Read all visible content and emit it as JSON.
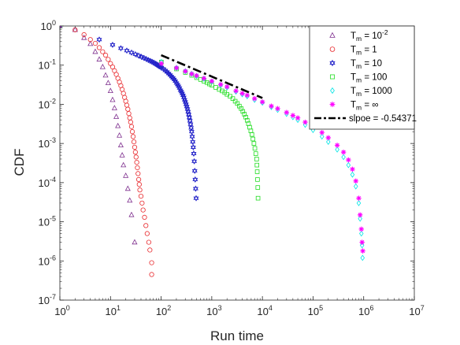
{
  "chart_data": {
    "type": "scatter",
    "title": "",
    "xlabel": "Run time",
    "ylabel": "CDF",
    "xscale": "log",
    "yscale": "log",
    "xlim": [
      1,
      10000000
    ],
    "ylim": [
      1e-07,
      1
    ],
    "x_ticks": [
      "10^0",
      "10^1",
      "10^2",
      "10^3",
      "10^4",
      "10^5",
      "10^6",
      "10^7"
    ],
    "y_ticks": [
      "10^0",
      "10^-1",
      "10^-2",
      "10^-3",
      "10^-4",
      "10^-5",
      "10^-6",
      "10^-7"
    ],
    "legend_position": "top-right",
    "series": [
      {
        "name": "T_m = 10^-2",
        "label_main": "T",
        "label_sub": "m",
        "label_rest": " = 10",
        "label_sup": "-2",
        "marker": "triangle",
        "color": "#7E2F8E",
        "points": [
          [
            1,
            1
          ],
          [
            2,
            0.8
          ],
          [
            3,
            0.5
          ],
          [
            4,
            0.35
          ],
          [
            5,
            0.22
          ],
          [
            6,
            0.14
          ],
          [
            7,
            0.09
          ],
          [
            8,
            0.055
          ],
          [
            9,
            0.035
          ],
          [
            10,
            0.022
          ],
          [
            11,
            0.013
          ],
          [
            12,
            0.008
          ],
          [
            13,
            0.0048
          ],
          [
            14,
            0.0028
          ],
          [
            15,
            0.0016
          ],
          [
            16,
            0.0009
          ],
          [
            17,
            0.0005
          ],
          [
            18,
            0.00028
          ],
          [
            20,
            0.00015
          ],
          [
            22,
            7e-05
          ],
          [
            24,
            3.5e-05
          ],
          [
            26,
            1.5e-05
          ],
          [
            30,
            3e-06
          ]
        ]
      },
      {
        "name": "T_m = 1",
        "label_main": "T",
        "label_sub": "m",
        "label_rest": " = 1",
        "label_sup": "",
        "marker": "circle",
        "color": "#E8282C",
        "points": [
          [
            1,
            1
          ],
          [
            2,
            0.8
          ],
          [
            3,
            0.6
          ],
          [
            4,
            0.45
          ],
          [
            5,
            0.36
          ],
          [
            6,
            0.28
          ],
          [
            7,
            0.22
          ],
          [
            8,
            0.18
          ],
          [
            9,
            0.14
          ],
          [
            10,
            0.11
          ],
          [
            11,
            0.09
          ],
          [
            12,
            0.072
          ],
          [
            13,
            0.058
          ],
          [
            14,
            0.046
          ],
          [
            15,
            0.037
          ],
          [
            16,
            0.03
          ],
          [
            17,
            0.024
          ],
          [
            18,
            0.019
          ],
          [
            19,
            0.015
          ],
          [
            20,
            0.012
          ],
          [
            21,
            0.0095
          ],
          [
            22,
            0.0075
          ],
          [
            23,
            0.0058
          ],
          [
            24,
            0.0045
          ],
          [
            25,
            0.0035
          ],
          [
            26,
            0.0027
          ],
          [
            27,
            0.002
          ],
          [
            28,
            0.0015
          ],
          [
            29,
            0.0011
          ],
          [
            30,
            0.0008
          ],
          [
            31,
            0.0006
          ],
          [
            32,
            0.00045
          ],
          [
            33,
            0.00033
          ],
          [
            34,
            0.00024
          ],
          [
            35,
            0.00017
          ],
          [
            36,
            0.00012
          ],
          [
            37,
            9e-05
          ],
          [
            38,
            6.5e-05
          ],
          [
            40,
            4.5e-05
          ],
          [
            42,
            3e-05
          ],
          [
            44,
            2e-05
          ],
          [
            47,
            1.3e-05
          ],
          [
            50,
            8e-06
          ],
          [
            53,
            5e-06
          ],
          [
            57,
            3e-06
          ],
          [
            60,
            1.9e-06
          ],
          [
            65,
            9e-07
          ],
          [
            65,
            4.5e-07
          ]
        ]
      },
      {
        "name": "T_m = 10",
        "label_main": "T",
        "label_sub": "m",
        "label_rest": " = 10",
        "label_sup": "",
        "marker": "hexagram",
        "color": "#2020C8",
        "points": [
          [
            1,
            1
          ],
          [
            6,
            0.45
          ],
          [
            11,
            0.33
          ],
          [
            16,
            0.27
          ],
          [
            21,
            0.235
          ],
          [
            26,
            0.21
          ],
          [
            31,
            0.19
          ],
          [
            36,
            0.175
          ],
          [
            41,
            0.162
          ],
          [
            46,
            0.152
          ],
          [
            51,
            0.143
          ],
          [
            56,
            0.135
          ],
          [
            61,
            0.128
          ],
          [
            66,
            0.122
          ],
          [
            71,
            0.116
          ],
          [
            76,
            0.11
          ],
          [
            81,
            0.105
          ],
          [
            86,
            0.1
          ],
          [
            91,
            0.095
          ],
          [
            96,
            0.091
          ],
          [
            101,
            0.087
          ],
          [
            111,
            0.08
          ],
          [
            121,
            0.073
          ],
          [
            131,
            0.067
          ],
          [
            141,
            0.061
          ],
          [
            151,
            0.056
          ],
          [
            161,
            0.051
          ],
          [
            171,
            0.047
          ],
          [
            181,
            0.043
          ],
          [
            191,
            0.039
          ],
          [
            201,
            0.035
          ],
          [
            211,
            0.032
          ],
          [
            221,
            0.029
          ],
          [
            231,
            0.026
          ],
          [
            241,
            0.023
          ],
          [
            251,
            0.021
          ],
          [
            261,
            0.019
          ],
          [
            271,
            0.017
          ],
          [
            281,
            0.015
          ],
          [
            291,
            0.013
          ],
          [
            301,
            0.0115
          ],
          [
            311,
            0.01
          ],
          [
            321,
            0.0088
          ],
          [
            331,
            0.0076
          ],
          [
            341,
            0.0065
          ],
          [
            351,
            0.0055
          ],
          [
            361,
            0.0046
          ],
          [
            371,
            0.0038
          ],
          [
            381,
            0.0031
          ],
          [
            391,
            0.0025
          ],
          [
            401,
            0.002
          ],
          [
            411,
            0.0015
          ],
          [
            421,
            0.0011
          ],
          [
            431,
            0.0008
          ],
          [
            441,
            0.00055
          ],
          [
            451,
            0.00035
          ],
          [
            461,
            0.0002
          ],
          [
            471,
            0.00012
          ],
          [
            481,
            7e-05
          ],
          [
            491,
            4e-05
          ]
        ]
      },
      {
        "name": "T_m = 100",
        "label_main": "T",
        "label_sub": "m",
        "label_rest": " = 100",
        "label_sup": "",
        "marker": "square",
        "color": "#22DD22",
        "points": [
          [
            1,
            1
          ],
          [
            101,
            0.12
          ],
          [
            201,
            0.08
          ],
          [
            301,
            0.065
          ],
          [
            401,
            0.055
          ],
          [
            501,
            0.048
          ],
          [
            601,
            0.043
          ],
          [
            701,
            0.039
          ],
          [
            801,
            0.036
          ],
          [
            901,
            0.033
          ],
          [
            1001,
            0.031
          ],
          [
            1201,
            0.027
          ],
          [
            1401,
            0.024
          ],
          [
            1601,
            0.022
          ],
          [
            1801,
            0.02
          ],
          [
            2001,
            0.018
          ],
          [
            2301,
            0.016
          ],
          [
            2601,
            0.014
          ],
          [
            2901,
            0.012
          ],
          [
            3201,
            0.0105
          ],
          [
            3501,
            0.009
          ],
          [
            3801,
            0.0078
          ],
          [
            4101,
            0.0066
          ],
          [
            4401,
            0.0056
          ],
          [
            4701,
            0.0047
          ],
          [
            5001,
            0.0039
          ],
          [
            5301,
            0.0032
          ],
          [
            5601,
            0.0026
          ],
          [
            5901,
            0.0021
          ],
          [
            6201,
            0.0017
          ],
          [
            6501,
            0.0013
          ],
          [
            6801,
            0.001
          ],
          [
            7101,
            0.00075
          ],
          [
            7401,
            0.00055
          ],
          [
            7701,
            0.0004
          ],
          [
            7801,
            0.00028
          ],
          [
            7901,
            0.00019
          ],
          [
            8001,
            0.00012
          ],
          [
            8101,
            7.5e-05
          ],
          [
            8201,
            4e-05
          ]
        ]
      },
      {
        "name": "T_m = 1000",
        "label_main": "T",
        "label_sub": "m",
        "label_rest": " = 1000",
        "label_sup": "",
        "marker": "diamond",
        "color": "#00E5E5",
        "points": [
          [
            1,
            1
          ],
          [
            101,
            0.12
          ],
          [
            201,
            0.085
          ],
          [
            301,
            0.07
          ],
          [
            401,
            0.06
          ],
          [
            501,
            0.053
          ],
          [
            701,
            0.045
          ],
          [
            1001,
            0.038
          ],
          [
            1501,
            0.031
          ],
          [
            2001,
            0.027
          ],
          [
            3001,
            0.021
          ],
          [
            4001,
            0.018
          ],
          [
            5001,
            0.016
          ],
          [
            7001,
            0.013
          ],
          [
            10001,
            0.011
          ],
          [
            15001,
            0.0085
          ],
          [
            20001,
            0.0072
          ],
          [
            30001,
            0.0057
          ],
          [
            40001,
            0.0047
          ],
          [
            50001,
            0.004
          ],
          [
            70001,
            0.003
          ],
          [
            100001,
            0.0022
          ],
          [
            150001,
            0.0015
          ],
          [
            200001,
            0.0011
          ],
          [
            300001,
            0.0007
          ],
          [
            400001,
            0.00045
          ],
          [
            500001,
            0.00028
          ],
          [
            600001,
            0.00016
          ],
          [
            700001,
            8e-05
          ],
          [
            800001,
            3e-05
          ],
          [
            850001,
            1.2e-05
          ],
          [
            900001,
            5e-06
          ],
          [
            930001,
            2.5e-06
          ],
          [
            950001,
            1.2e-06
          ]
        ]
      },
      {
        "name": "T_m = ∞",
        "label_main": "T",
        "label_sub": "m",
        "label_rest": " = ∞",
        "label_sup": "",
        "marker": "asterisk",
        "color": "#FF00FF",
        "points": [
          [
            1,
            1
          ],
          [
            101,
            0.11
          ],
          [
            201,
            0.085
          ],
          [
            301,
            0.07
          ],
          [
            401,
            0.06
          ],
          [
            501,
            0.054
          ],
          [
            701,
            0.046
          ],
          [
            1001,
            0.039
          ],
          [
            1501,
            0.032
          ],
          [
            2001,
            0.028
          ],
          [
            3001,
            0.022
          ],
          [
            4001,
            0.019
          ],
          [
            5001,
            0.017
          ],
          [
            7001,
            0.014
          ],
          [
            10001,
            0.0115
          ],
          [
            15001,
            0.009
          ],
          [
            20001,
            0.0078
          ],
          [
            30001,
            0.0062
          ],
          [
            40001,
            0.0052
          ],
          [
            50001,
            0.0045
          ],
          [
            70001,
            0.0035
          ],
          [
            100001,
            0.0027
          ],
          [
            150001,
            0.0019
          ],
          [
            200001,
            0.0014
          ],
          [
            300001,
            0.0009
          ],
          [
            400001,
            0.0006
          ],
          [
            500001,
            0.00038
          ],
          [
            600001,
            0.00022
          ],
          [
            700001,
            0.00011
          ],
          [
            800001,
            4e-05
          ],
          [
            850001,
            1.5e-05
          ],
          [
            900001,
            6.5e-06
          ],
          [
            930001,
            3e-06
          ],
          [
            960001,
            1.8e-06
          ]
        ]
      }
    ],
    "fit_line": {
      "name": "slpoe = -0.54371",
      "style": "dash-dot",
      "color": "#000000",
      "points": [
        [
          100,
          0.18
        ],
        [
          10000,
          0.0145
        ]
      ]
    }
  }
}
